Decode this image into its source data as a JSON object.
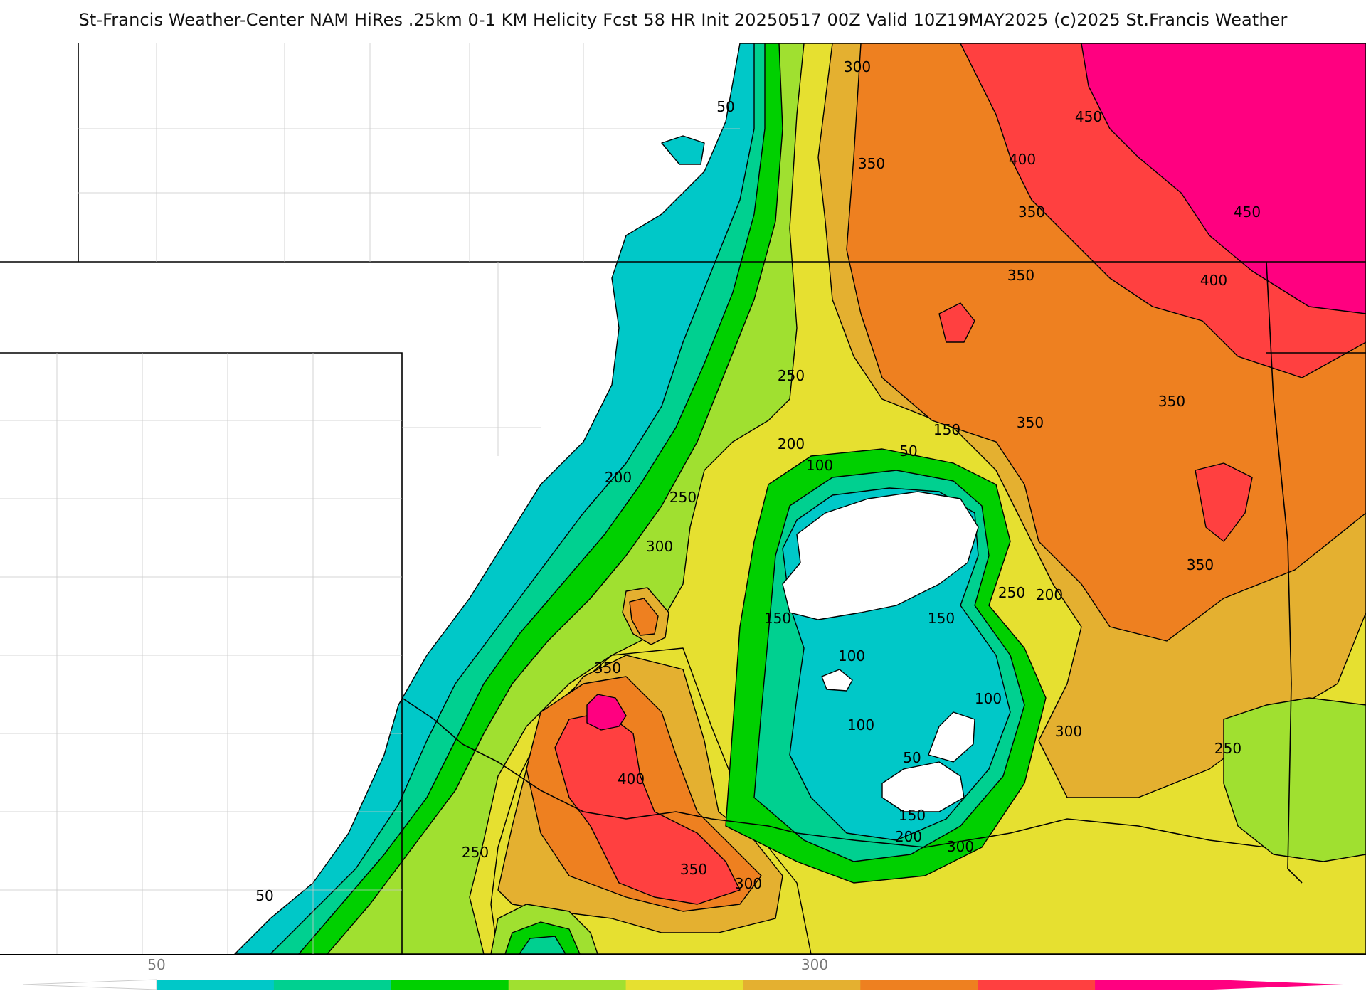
{
  "title": "St-Francis Weather-Center NAM HiRes .25km 0-1 KM Helicity Fcst 58 HR Init 20250517 00Z  Valid 10Z19MAY2025    (c)2025 St.Francis Weather",
  "colorbar": {
    "tick_labels": [
      "50",
      "300"
    ],
    "colors": [
      "#00c8c8",
      "#00d090",
      "#00d000",
      "#a0e030",
      "#e6e030",
      "#e4b030",
      "#ee8020",
      "#ff4040",
      "#ff0080"
    ]
  },
  "contour_labels": {
    "l1": "300",
    "l2": "50",
    "l3": "450",
    "l4": "400",
    "l5": "350",
    "l6": "350",
    "l7": "450",
    "l8": "350",
    "l9": "400",
    "l10": "250",
    "l11": "150",
    "l12": "50",
    "l13": "200",
    "l14": "100",
    "l15": "350",
    "l16": "350",
    "l17": "200",
    "l18": "250",
    "l19": "300",
    "l20": "350",
    "l21": "250",
    "l22": "200",
    "l23": "150",
    "l24": "150",
    "l25": "100",
    "l26": "350",
    "l27": "100",
    "l28": "100",
    "l29": "300",
    "l30": "400",
    "l31": "250",
    "l32": "50",
    "l33": "150",
    "l34": "200",
    "l35": "300",
    "l36": "350",
    "l37": "300",
    "l38": "250",
    "l39": "50"
  }
}
